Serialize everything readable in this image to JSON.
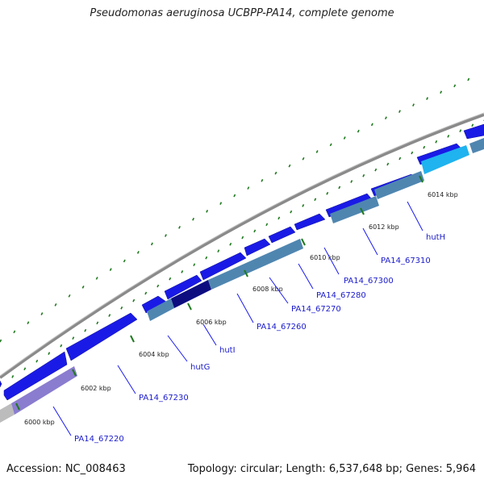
{
  "header": {
    "title": "Pseudomonas aeruginosa UCBPP-PA14, complete genome"
  },
  "footer": {
    "accession": "Accession: NC_008463",
    "summary": "Topology: circular; Length: 6,537,648 bp; Genes: 5,964"
  },
  "colors": {
    "backbone": "#8a8a8a",
    "forward_cds": "#1a1ae6",
    "reverse_cds": "#4f86b0",
    "tick": "#1f7a1f",
    "label_line": "#1a1aee",
    "gene_label": "#1a1acc"
  },
  "ticks": [
    {
      "label": "6000 kbp"
    },
    {
      "label": "6002 kbp"
    },
    {
      "label": "6004 kbp"
    },
    {
      "label": "6006 kbp"
    },
    {
      "label": "6008 kbp"
    },
    {
      "label": "6010 kbp"
    },
    {
      "label": "6012 kbp"
    },
    {
      "label": "6014 kbp"
    }
  ],
  "gene_labels": [
    {
      "name": "PA14_67220"
    },
    {
      "name": "PA14_67230"
    },
    {
      "name": "hutG"
    },
    {
      "name": "hutI"
    },
    {
      "name": "PA14_67260"
    },
    {
      "name": "PA14_67270"
    },
    {
      "name": "PA14_67280"
    },
    {
      "name": "PA14_67300"
    },
    {
      "name": "PA14_67310"
    },
    {
      "name": "hutH"
    }
  ]
}
